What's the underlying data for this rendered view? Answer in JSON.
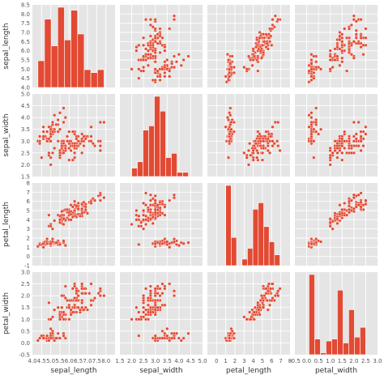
{
  "chart_data": {
    "type": "scatter",
    "kind": "pairplot",
    "variables": [
      "sepal_length",
      "sepal_width",
      "petal_length",
      "petal_width"
    ],
    "grid": true,
    "background": "#e5e5e5",
    "marker_color": "#e24a33",
    "axes": {
      "sepal_length": {
        "label": "sepal_length",
        "lim": [
          4.0,
          8.5
        ],
        "ticks": [
          "4.0",
          "4.5",
          "5.0",
          "5.5",
          "6.0",
          "6.5",
          "7.0",
          "7.5",
          "8.0",
          "8.5"
        ],
        "tick_values": [
          4.0,
          4.5,
          5.0,
          5.5,
          6.0,
          6.5,
          7.0,
          7.5,
          8.0,
          8.5
        ],
        "xtick_labels": [
          "4.0",
          "4.5",
          "5.0",
          "5.5",
          "6.0",
          "6.5",
          "7.0",
          "7.5",
          "8.0"
        ]
      },
      "sepal_width": {
        "label": "sepal_width",
        "lim": [
          1.5,
          5.0
        ],
        "ticks": [
          "1.5",
          "2.0",
          "2.5",
          "3.0",
          "3.5",
          "4.0",
          "4.5",
          "5.0"
        ],
        "tick_values": [
          1.5,
          2.0,
          2.5,
          3.0,
          3.5,
          4.0,
          4.5,
          5.0
        ],
        "xtick_labels": [
          "1.5",
          "2.0",
          "2.5",
          "3.0",
          "3.5",
          "4.0",
          "4.5",
          "5.0"
        ]
      },
      "petal_length": {
        "label": "petal_length",
        "lim": [
          -1,
          8
        ],
        "ticks": [
          "-1",
          "0",
          "1",
          "2",
          "3",
          "4",
          "5",
          "6",
          "7",
          "8"
        ],
        "tick_values": [
          -1,
          0,
          1,
          2,
          3,
          4,
          5,
          6,
          7,
          8
        ],
        "xtick_labels": [
          "0",
          "1",
          "2",
          "3",
          "4",
          "5",
          "6",
          "7",
          "8"
        ]
      },
      "petal_width": {
        "label": "petal_width",
        "lim": [
          -0.5,
          3.0
        ],
        "ticks": [
          "-0.5",
          "0.0",
          "0.5",
          "1.0",
          "1.5",
          "2.0",
          "2.5",
          "3.0"
        ],
        "tick_values": [
          -0.5,
          0.0,
          0.5,
          1.0,
          1.5,
          2.0,
          2.5,
          3.0
        ],
        "xtick_labels": [
          "-0.5",
          "0.0",
          "0.5",
          "1.0",
          "1.5",
          "2.0",
          "2.5",
          "3.0"
        ]
      }
    },
    "histograms": {
      "sepal_length": {
        "edges": [
          4.3,
          4.66,
          5.02,
          5.38,
          5.74,
          6.1,
          6.46,
          6.82,
          7.18,
          7.54,
          7.9
        ],
        "counts": [
          9,
          23,
          14,
          27,
          16,
          26,
          18,
          6,
          5,
          6
        ]
      },
      "sepal_width": {
        "edges": [
          2.0,
          2.24,
          2.48,
          2.72,
          2.96,
          3.2,
          3.44,
          3.68,
          3.92,
          4.16,
          4.4
        ],
        "counts": [
          4,
          7,
          22,
          24,
          38,
          31,
          9,
          11,
          2,
          2
        ]
      },
      "petal_length": {
        "edges": [
          1.0,
          1.59,
          2.18,
          2.77,
          3.36,
          3.95,
          4.54,
          5.13,
          5.72,
          6.31,
          6.9
        ],
        "counts": [
          37,
          13,
          0,
          3,
          8,
          26,
          29,
          18,
          11,
          5
        ]
      },
      "petal_width": {
        "edges": [
          0.1,
          0.34,
          0.58,
          0.82,
          1.06,
          1.3,
          1.54,
          1.78,
          2.02,
          2.26,
          2.5
        ],
        "counts": [
          41,
          8,
          1,
          7,
          8,
          33,
          6,
          23,
          9,
          14
        ]
      }
    },
    "observations": [
      [
        5.1,
        3.5,
        1.4,
        0.2
      ],
      [
        4.9,
        3.0,
        1.4,
        0.2
      ],
      [
        4.7,
        3.2,
        1.3,
        0.2
      ],
      [
        4.6,
        3.1,
        1.5,
        0.2
      ],
      [
        5.0,
        3.6,
        1.4,
        0.2
      ],
      [
        5.4,
        3.9,
        1.7,
        0.4
      ],
      [
        4.6,
        3.4,
        1.4,
        0.3
      ],
      [
        5.0,
        3.4,
        1.5,
        0.2
      ],
      [
        4.4,
        2.9,
        1.4,
        0.2
      ],
      [
        4.9,
        3.1,
        1.5,
        0.1
      ],
      [
        5.4,
        3.7,
        1.5,
        0.2
      ],
      [
        4.8,
        3.4,
        1.6,
        0.2
      ],
      [
        4.8,
        3.0,
        1.4,
        0.1
      ],
      [
        4.3,
        3.0,
        1.1,
        0.1
      ],
      [
        5.8,
        4.0,
        1.2,
        0.2
      ],
      [
        5.7,
        4.4,
        1.5,
        0.4
      ],
      [
        5.4,
        3.9,
        1.3,
        0.4
      ],
      [
        5.1,
        3.5,
        1.4,
        0.3
      ],
      [
        5.7,
        3.8,
        1.7,
        0.3
      ],
      [
        5.1,
        3.8,
        1.5,
        0.3
      ],
      [
        5.4,
        3.4,
        1.7,
        0.2
      ],
      [
        5.1,
        3.7,
        1.5,
        0.4
      ],
      [
        4.6,
        3.6,
        1.0,
        0.2
      ],
      [
        5.1,
        3.3,
        1.7,
        0.5
      ],
      [
        4.8,
        3.4,
        1.9,
        0.2
      ],
      [
        5.0,
        3.0,
        1.6,
        0.2
      ],
      [
        5.0,
        3.4,
        1.6,
        0.4
      ],
      [
        5.2,
        3.5,
        1.5,
        0.2
      ],
      [
        5.2,
        3.4,
        1.4,
        0.2
      ],
      [
        4.7,
        3.2,
        1.6,
        0.2
      ],
      [
        4.8,
        3.1,
        1.6,
        0.2
      ],
      [
        5.4,
        3.4,
        1.5,
        0.4
      ],
      [
        5.2,
        4.1,
        1.5,
        0.1
      ],
      [
        5.5,
        4.2,
        1.4,
        0.2
      ],
      [
        4.9,
        3.1,
        1.5,
        0.2
      ],
      [
        5.0,
        3.2,
        1.2,
        0.2
      ],
      [
        5.5,
        3.5,
        1.3,
        0.2
      ],
      [
        4.9,
        3.6,
        1.4,
        0.1
      ],
      [
        4.4,
        3.0,
        1.3,
        0.2
      ],
      [
        5.1,
        3.4,
        1.5,
        0.2
      ],
      [
        5.0,
        3.5,
        1.3,
        0.3
      ],
      [
        4.5,
        2.3,
        1.3,
        0.3
      ],
      [
        4.4,
        3.2,
        1.3,
        0.2
      ],
      [
        5.0,
        3.5,
        1.6,
        0.6
      ],
      [
        5.1,
        3.8,
        1.9,
        0.4
      ],
      [
        4.8,
        3.0,
        1.4,
        0.3
      ],
      [
        5.1,
        3.8,
        1.6,
        0.2
      ],
      [
        4.6,
        3.2,
        1.4,
        0.2
      ],
      [
        5.3,
        3.7,
        1.5,
        0.2
      ],
      [
        5.0,
        3.3,
        1.4,
        0.2
      ],
      [
        7.0,
        3.2,
        4.7,
        1.4
      ],
      [
        6.4,
        3.2,
        4.5,
        1.5
      ],
      [
        6.9,
        3.1,
        4.9,
        1.5
      ],
      [
        5.5,
        2.3,
        4.0,
        1.3
      ],
      [
        6.5,
        2.8,
        4.6,
        1.5
      ],
      [
        5.7,
        2.8,
        4.5,
        1.3
      ],
      [
        6.3,
        3.3,
        4.7,
        1.6
      ],
      [
        4.9,
        2.4,
        3.3,
        1.0
      ],
      [
        6.6,
        2.9,
        4.6,
        1.3
      ],
      [
        5.2,
        2.7,
        3.9,
        1.4
      ],
      [
        5.0,
        2.0,
        3.5,
        1.0
      ],
      [
        5.9,
        3.0,
        4.2,
        1.5
      ],
      [
        6.0,
        2.2,
        4.0,
        1.0
      ],
      [
        6.1,
        2.9,
        4.7,
        1.4
      ],
      [
        5.6,
        2.9,
        3.6,
        1.3
      ],
      [
        6.7,
        3.1,
        4.4,
        1.4
      ],
      [
        5.6,
        3.0,
        4.5,
        1.5
      ],
      [
        5.8,
        2.7,
        4.1,
        1.0
      ],
      [
        6.2,
        2.2,
        4.5,
        1.5
      ],
      [
        5.6,
        2.5,
        3.9,
        1.1
      ],
      [
        5.9,
        3.2,
        4.8,
        1.8
      ],
      [
        6.1,
        2.8,
        4.0,
        1.3
      ],
      [
        6.3,
        2.5,
        4.9,
        1.5
      ],
      [
        6.1,
        2.8,
        4.7,
        1.2
      ],
      [
        6.4,
        2.9,
        4.3,
        1.3
      ],
      [
        6.6,
        3.0,
        4.4,
        1.4
      ],
      [
        6.8,
        2.8,
        4.8,
        1.4
      ],
      [
        6.7,
        3.0,
        5.0,
        1.7
      ],
      [
        6.0,
        2.9,
        4.5,
        1.5
      ],
      [
        5.7,
        2.6,
        3.5,
        1.0
      ],
      [
        5.5,
        2.4,
        3.8,
        1.1
      ],
      [
        5.5,
        2.4,
        3.7,
        1.0
      ],
      [
        5.8,
        2.7,
        3.9,
        1.2
      ],
      [
        6.0,
        2.7,
        5.1,
        1.6
      ],
      [
        5.4,
        3.0,
        4.5,
        1.5
      ],
      [
        6.0,
        3.4,
        4.5,
        1.6
      ],
      [
        6.7,
        3.1,
        4.7,
        1.5
      ],
      [
        6.3,
        2.3,
        4.4,
        1.3
      ],
      [
        5.6,
        3.0,
        4.1,
        1.3
      ],
      [
        5.5,
        2.5,
        4.0,
        1.3
      ],
      [
        5.5,
        2.6,
        4.4,
        1.2
      ],
      [
        6.1,
        3.0,
        4.6,
        1.4
      ],
      [
        5.8,
        2.6,
        4.0,
        1.2
      ],
      [
        5.0,
        2.3,
        3.3,
        1.0
      ],
      [
        5.6,
        2.7,
        4.2,
        1.3
      ],
      [
        5.7,
        3.0,
        4.2,
        1.2
      ],
      [
        5.7,
        2.9,
        4.2,
        1.3
      ],
      [
        6.2,
        2.9,
        4.3,
        1.3
      ],
      [
        5.1,
        2.5,
        3.0,
        1.1
      ],
      [
        5.7,
        2.8,
        4.1,
        1.3
      ],
      [
        6.3,
        3.3,
        6.0,
        2.5
      ],
      [
        5.8,
        2.7,
        5.1,
        1.9
      ],
      [
        7.1,
        3.0,
        5.9,
        2.1
      ],
      [
        6.3,
        2.9,
        5.6,
        1.8
      ],
      [
        6.5,
        3.0,
        5.8,
        2.2
      ],
      [
        7.6,
        3.0,
        6.6,
        2.1
      ],
      [
        4.9,
        2.5,
        4.5,
        1.7
      ],
      [
        7.3,
        2.9,
        6.3,
        1.8
      ],
      [
        6.7,
        2.5,
        5.8,
        1.8
      ],
      [
        7.2,
        3.6,
        6.1,
        2.5
      ],
      [
        6.5,
        3.2,
        5.1,
        2.0
      ],
      [
        6.4,
        2.7,
        5.3,
        1.9
      ],
      [
        6.8,
        3.0,
        5.5,
        2.1
      ],
      [
        5.7,
        2.5,
        5.0,
        2.0
      ],
      [
        5.8,
        2.8,
        5.1,
        2.4
      ],
      [
        6.4,
        3.2,
        5.3,
        2.3
      ],
      [
        6.5,
        3.0,
        5.5,
        1.8
      ],
      [
        7.7,
        3.8,
        6.7,
        2.2
      ],
      [
        7.7,
        2.6,
        6.9,
        2.3
      ],
      [
        6.0,
        2.2,
        5.0,
        1.5
      ],
      [
        6.9,
        3.2,
        5.7,
        2.3
      ],
      [
        5.6,
        2.8,
        4.9,
        2.0
      ],
      [
        7.7,
        2.8,
        6.7,
        2.0
      ],
      [
        6.3,
        2.7,
        4.9,
        1.8
      ],
      [
        6.7,
        3.3,
        5.7,
        2.1
      ],
      [
        7.2,
        3.2,
        6.0,
        1.8
      ],
      [
        6.2,
        2.8,
        4.8,
        1.8
      ],
      [
        6.1,
        3.0,
        4.9,
        1.8
      ],
      [
        6.4,
        2.8,
        5.6,
        2.1
      ],
      [
        7.2,
        3.0,
        5.8,
        1.6
      ],
      [
        7.4,
        2.8,
        6.1,
        1.9
      ],
      [
        7.9,
        3.8,
        6.4,
        2.0
      ],
      [
        6.4,
        2.8,
        5.6,
        2.2
      ],
      [
        6.3,
        2.8,
        5.1,
        1.5
      ],
      [
        6.1,
        2.6,
        5.6,
        1.4
      ],
      [
        7.7,
        3.0,
        6.1,
        2.3
      ],
      [
        6.3,
        3.4,
        5.6,
        2.4
      ],
      [
        6.4,
        3.1,
        5.5,
        1.8
      ],
      [
        6.0,
        3.0,
        4.8,
        1.8
      ],
      [
        6.9,
        3.1,
        5.4,
        2.1
      ],
      [
        6.7,
        3.1,
        5.6,
        2.4
      ],
      [
        6.9,
        3.1,
        5.1,
        2.3
      ],
      [
        5.8,
        2.7,
        5.1,
        1.9
      ],
      [
        6.8,
        3.2,
        5.9,
        2.3
      ],
      [
        6.7,
        3.3,
        5.7,
        2.5
      ],
      [
        6.7,
        3.0,
        5.2,
        2.3
      ],
      [
        6.3,
        2.5,
        5.0,
        1.9
      ],
      [
        6.5,
        3.0,
        5.2,
        2.0
      ],
      [
        6.2,
        3.4,
        5.4,
        2.3
      ],
      [
        5.9,
        3.0,
        5.1,
        1.8
      ]
    ]
  }
}
